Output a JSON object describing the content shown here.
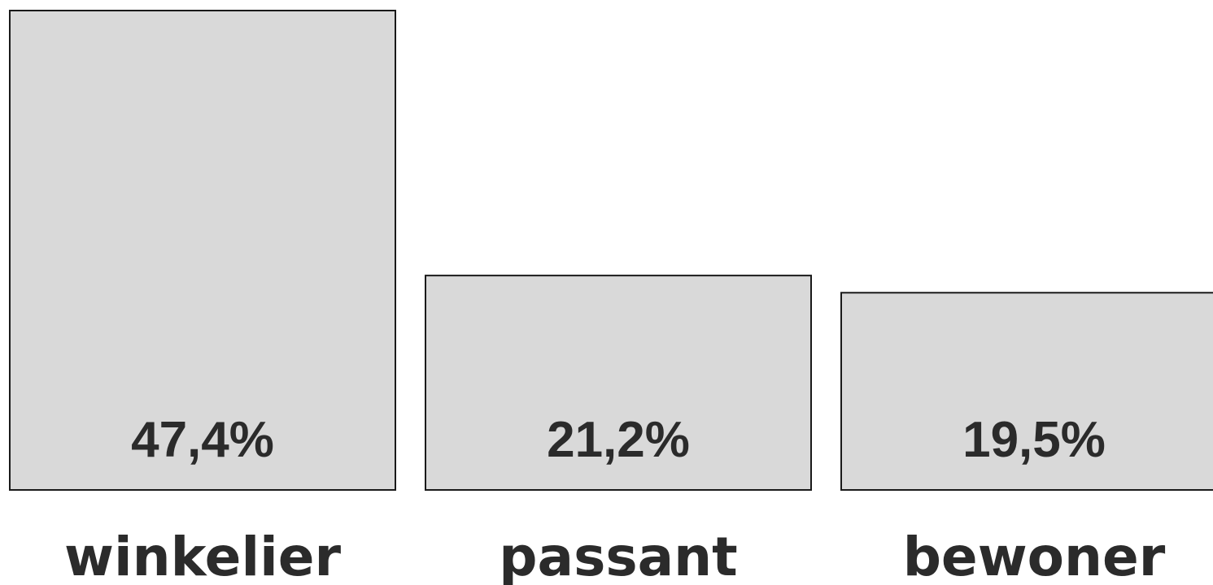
{
  "chart_data": {
    "type": "bar",
    "categories": [
      "winkelier",
      "passant",
      "bewoner"
    ],
    "values": [
      47.4,
      21.2,
      19.5
    ],
    "value_labels": [
      "47,4%",
      "21,2%",
      "19,5%"
    ],
    "title": "",
    "xlabel": "",
    "ylabel": "",
    "ylim": [
      0,
      47.4
    ],
    "grid": false,
    "colors": {
      "bar_fill": "#d9d9d9",
      "bar_stroke": "#1a1a1a",
      "text": "#2b2b2b"
    }
  }
}
